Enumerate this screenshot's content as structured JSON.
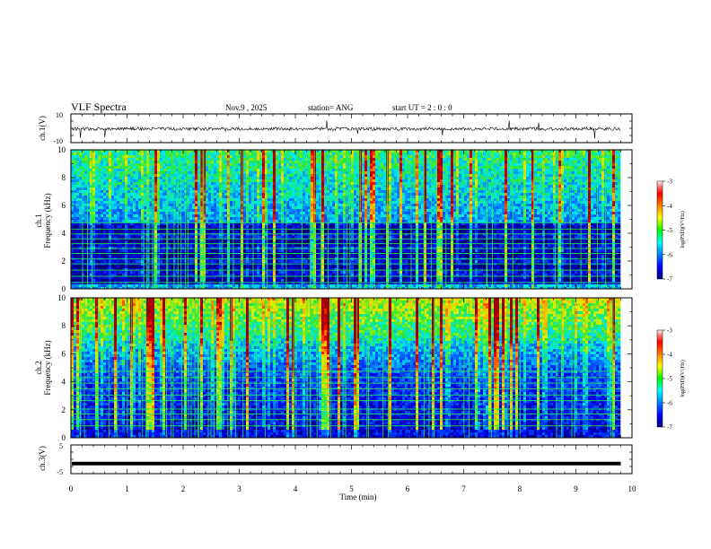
{
  "header": {
    "title": "VLF Spectra",
    "date": "Nov.9  , 2025",
    "station": "station= ANG",
    "start": "start  UT =   2 : 0  : 0"
  },
  "chart_data": [
    {
      "type": "line",
      "panel": "ch1-waveform",
      "ylabel": "ch.1(V)",
      "ylim": [
        -10,
        10
      ],
      "yticks": [
        "10",
        "-10"
      ],
      "xlim": [
        0,
        10
      ],
      "baseline_value": -0.4,
      "note_visible": "noisy waveform around slightly below zero with spikes"
    },
    {
      "type": "heatmap",
      "panel": "ch1-spectrogram",
      "ylabel_line1": "ch.1",
      "ylabel_line2": "Frequency  (kHz)",
      "ylim": [
        0,
        10
      ],
      "yticks": [
        "0",
        "2",
        "4",
        "6",
        "8",
        "10"
      ],
      "xlim": [
        0,
        10
      ],
      "data_end_min": 9.8,
      "colorbar": {
        "label": "log(PSD)(V²/Hz)",
        "range": [
          -7,
          -3
        ],
        "ticks": [
          "-3",
          "-4",
          "-5",
          "-6",
          "-7"
        ]
      },
      "horizontal_lines_khz": [
        0.45,
        0.9,
        1.35,
        1.8,
        2.15,
        2.55,
        2.9,
        3.25,
        3.6,
        3.95,
        4.3,
        4.75
      ]
    },
    {
      "type": "heatmap",
      "panel": "ch2-spectrogram",
      "ylabel_line1": "ch.2",
      "ylabel_line2": "Frequency  (kHz)",
      "ylim": [
        0,
        10
      ],
      "yticks": [
        "0",
        "2",
        "4",
        "6",
        "8",
        "10"
      ],
      "xlim": [
        0,
        10
      ],
      "data_end_min": 9.8,
      "colorbar": {
        "label": "log(PSD)(V²/Hz)",
        "range": [
          -7,
          -3
        ],
        "ticks": [
          "-3",
          "-4",
          "-5",
          "-6",
          "-7"
        ]
      },
      "horizontal_lines_khz": [
        0.85,
        1.3,
        1.7,
        2.05,
        2.65,
        3.05,
        3.5,
        3.9,
        4.3,
        4.75
      ]
    },
    {
      "type": "line",
      "panel": "ch3-waveform",
      "ylabel": "ch.3(V)",
      "ylim": [
        -5,
        5
      ],
      "yticks": [
        "5",
        "-5"
      ],
      "xlim": [
        0,
        10
      ],
      "baseline_value": -1.5
    }
  ],
  "x_axis": {
    "label": "Time  (min)",
    "ticks": [
      "0",
      "1",
      "2",
      "3",
      "4",
      "5",
      "6",
      "7",
      "8",
      "9",
      "10"
    ]
  }
}
